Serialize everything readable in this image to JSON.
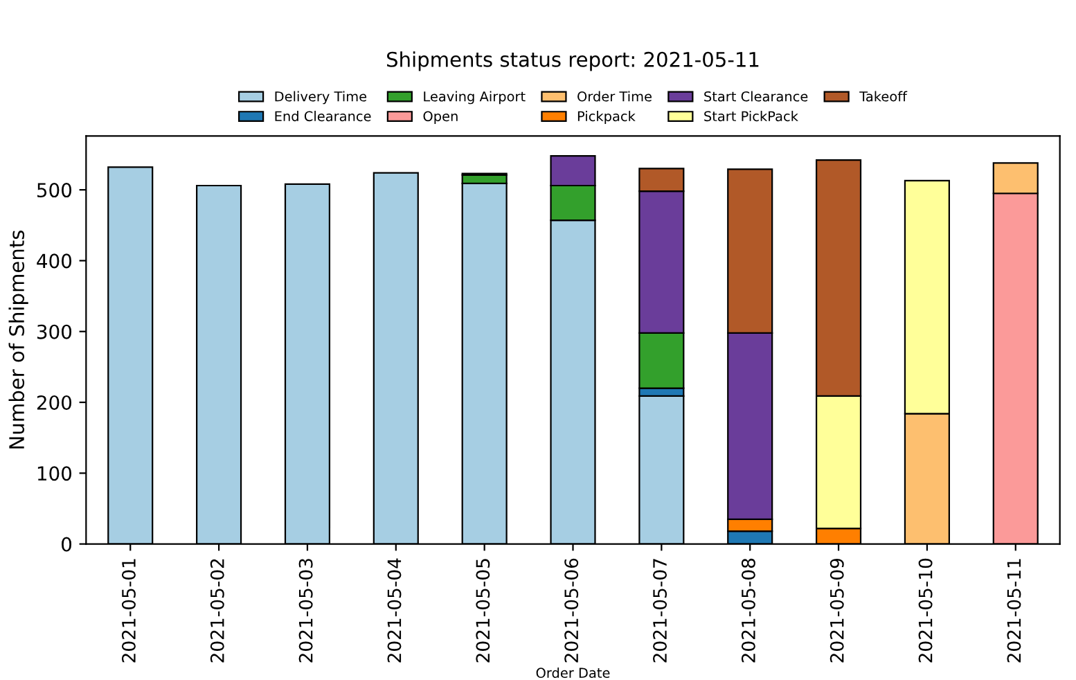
{
  "chart_data": {
    "type": "bar",
    "stacked": true,
    "title": "Shipments status report: 2021-05-11",
    "xlabel": "Order Date",
    "ylabel": "Number of Shipments",
    "categories": [
      "2021-05-01",
      "2021-05-02",
      "2021-05-03",
      "2021-05-04",
      "2021-05-05",
      "2021-05-06",
      "2021-05-07",
      "2021-05-08",
      "2021-05-09",
      "2021-05-10",
      "2021-05-11"
    ],
    "series": [
      {
        "name": "Delivery Time",
        "color": "#a6cee3",
        "values": [
          532,
          506,
          508,
          524,
          509,
          457,
          209,
          0,
          0,
          0,
          0
        ]
      },
      {
        "name": "End Clearance",
        "color": "#1f78b4",
        "values": [
          0,
          0,
          0,
          0,
          0,
          0,
          11,
          18,
          0,
          0,
          0
        ]
      },
      {
        "name": "Leaving Airport",
        "color": "#33a02c",
        "values": [
          0,
          0,
          0,
          0,
          12,
          49,
          78,
          0,
          0,
          0,
          0
        ]
      },
      {
        "name": "Open",
        "color": "#fb9a99",
        "values": [
          0,
          0,
          0,
          0,
          0,
          0,
          0,
          0,
          0,
          0,
          495
        ]
      },
      {
        "name": "Order Time",
        "color": "#fdbf6f",
        "values": [
          0,
          0,
          0,
          0,
          0,
          0,
          0,
          0,
          0,
          184,
          43
        ]
      },
      {
        "name": "Pickpack",
        "color": "#ff7f00",
        "values": [
          0,
          0,
          0,
          0,
          0,
          0,
          0,
          17,
          22,
          0,
          0
        ]
      },
      {
        "name": "Start Clearance",
        "color": "#6a3d9a",
        "values": [
          0,
          0,
          0,
          0,
          2,
          42,
          200,
          263,
          0,
          0,
          0
        ]
      },
      {
        "name": "Start PickPack",
        "color": "#ffff99",
        "values": [
          0,
          0,
          0,
          0,
          0,
          0,
          0,
          0,
          187,
          329,
          0
        ]
      },
      {
        "name": "Takeoff",
        "color": "#b15928",
        "values": [
          0,
          0,
          0,
          0,
          0,
          0,
          32,
          231,
          333,
          0,
          0
        ]
      }
    ],
    "ylim": [
      0,
      576
    ],
    "yticks": [
      0,
      100,
      200,
      300,
      400,
      500
    ],
    "grid": false,
    "legend": "top"
  }
}
